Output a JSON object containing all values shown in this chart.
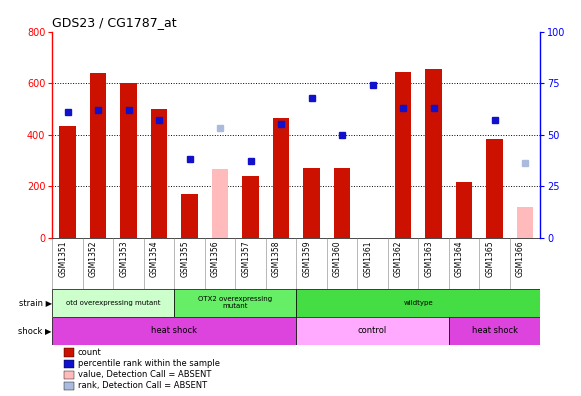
{
  "title": "GDS23 / CG1787_at",
  "samples": [
    "GSM1351",
    "GSM1352",
    "GSM1353",
    "GSM1354",
    "GSM1355",
    "GSM1356",
    "GSM1357",
    "GSM1358",
    "GSM1359",
    "GSM1360",
    "GSM1361",
    "GSM1362",
    "GSM1363",
    "GSM1364",
    "GSM1365",
    "GSM1366"
  ],
  "counts": [
    435,
    640,
    600,
    500,
    170,
    null,
    240,
    465,
    270,
    270,
    null,
    645,
    655,
    215,
    385,
    null
  ],
  "absent_counts": [
    null,
    null,
    null,
    null,
    null,
    265,
    null,
    null,
    null,
    null,
    null,
    null,
    null,
    null,
    null,
    120
  ],
  "percentile_ranks": [
    61,
    62,
    62,
    57,
    38,
    null,
    37,
    55,
    68,
    50,
    74,
    63,
    63,
    null,
    57,
    null
  ],
  "absent_ranks": [
    null,
    null,
    null,
    null,
    null,
    53,
    null,
    null,
    null,
    null,
    null,
    null,
    null,
    null,
    null,
    36
  ],
  "ylim_left": [
    0,
    800
  ],
  "yticks_left": [
    0,
    200,
    400,
    600,
    800
  ],
  "yticks_right": [
    0,
    25,
    50,
    75,
    100
  ],
  "bar_color": "#cc1100",
  "absent_bar_color": "#ffbbbb",
  "dot_color": "#1111cc",
  "absent_dot_color": "#aabbdd",
  "strain_groups": [
    {
      "label": "otd overexpressing mutant",
      "start": 0,
      "end": 4,
      "color": "#ccffcc"
    },
    {
      "label": "OTX2 overexpressing\nmutant",
      "start": 4,
      "end": 8,
      "color": "#66ee66"
    },
    {
      "label": "wildtype",
      "start": 8,
      "end": 16,
      "color": "#44dd44"
    }
  ],
  "shock_groups": [
    {
      "label": "heat shock",
      "start": 0,
      "end": 8,
      "color": "#dd44dd"
    },
    {
      "label": "control",
      "start": 8,
      "end": 13,
      "color": "#ffaaff"
    },
    {
      "label": "heat shock",
      "start": 13,
      "end": 16,
      "color": "#dd44dd"
    }
  ],
  "legend_items": [
    {
      "label": "count",
      "color": "#cc1100"
    },
    {
      "label": "percentile rank within the sample",
      "color": "#1111cc"
    },
    {
      "label": "value, Detection Call = ABSENT",
      "color": "#ffbbbb"
    },
    {
      "label": "rank, Detection Call = ABSENT",
      "color": "#aabbdd"
    }
  ],
  "grid_yticks": [
    200,
    400,
    600
  ],
  "bar_width": 0.55,
  "dot_size": 4
}
